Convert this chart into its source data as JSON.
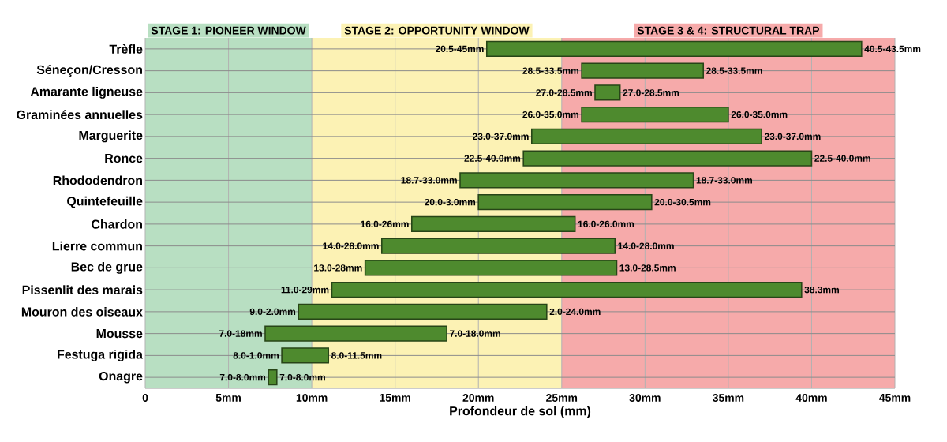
{
  "chart_data": {
    "type": "bar",
    "orientation": "horizontal",
    "xlabel": "Profondeur de sol (mm)",
    "categories": [
      "Trèfle",
      "Séneçon/Cresson",
      "Amarante ligneuse",
      "Graminées annuelles",
      "Marguerite",
      "Ronce",
      "Rhododendron",
      "Quintefeuille",
      "Chardon",
      "Lierre commun",
      "Bec de grue",
      "Pissenlit des marais",
      "Mouron des oiseaux",
      "Mousse",
      "Festuga rigida",
      "Onagre"
    ],
    "base": [
      20.5,
      26.2,
      27.0,
      26.2,
      23.2,
      22.7,
      18.9,
      20.0,
      16.0,
      14.2,
      13.2,
      11.2,
      9.2,
      7.2,
      8.2,
      7.4
    ],
    "values": [
      22.5,
      7.3,
      1.5,
      8.8,
      13.8,
      17.3,
      14.0,
      10.4,
      9.8,
      14.0,
      15.1,
      28.2,
      14.9,
      10.9,
      2.8,
      0.5
    ],
    "color": "#4e8a2e",
    "xlim": [
      0,
      45
    ],
    "xticks": [
      0,
      {
        "value": 5,
        "label": "5mm"
      },
      {
        "value": 10,
        "label": "10mm"
      },
      {
        "value": 15,
        "label": "15mm"
      },
      {
        "value": 20,
        "label": "20mm"
      },
      {
        "value": 25,
        "label": "25mm"
      },
      {
        "value": 30,
        "label": "30mm"
      },
      {
        "value": 35,
        "label": "35mm"
      },
      {
        "value": 40,
        "label": "40mm"
      },
      {
        "value": 45,
        "label": "45mm"
      }
    ],
    "grid": true,
    "bands": [
      {
        "axis": "x",
        "from": 0,
        "to": 10,
        "label": "STAGE 1: PIONEER WINDOW",
        "color": "#b8dfc2"
      },
      {
        "axis": "x",
        "from": 10,
        "to": 25,
        "label": "STAGE 2: OPPORTUNITY WINDOW",
        "color": "#fcf2b4"
      },
      {
        "axis": "x",
        "from": 25,
        "to": 45,
        "label": "STAGE 3 & 4: STRUCTURAL TRAP",
        "color": "#f6aaaa"
      }
    ],
    "annotations": [
      {
        "text": "20.5-45mm",
        "x": 20.5,
        "y": "Trèfle"
      },
      {
        "text": "40.5-43.5mm",
        "x": 43.0,
        "y": "Trèfle"
      },
      {
        "text": "28.5-33.5mm",
        "x": 26.2,
        "y": "Séneçon/Cresson"
      },
      {
        "text": "28.5-33.5mm",
        "x": 33.5,
        "y": "Séneçon/Cresson"
      },
      {
        "text": "27.0-28.5mm",
        "x": 27.0,
        "y": "Amarante ligneuse"
      },
      {
        "text": "27.0-28.5mm",
        "x": 28.5,
        "y": "Amarante ligneuse"
      },
      {
        "text": "26.0-35.0mm",
        "x": 26.2,
        "y": "Graminées annuelles"
      },
      {
        "text": "26.0-35.0mm",
        "x": 35.0,
        "y": "Graminées annuelles"
      },
      {
        "text": "23.0-37.0mm",
        "x": 23.2,
        "y": "Marguerite"
      },
      {
        "text": "23.0-37.0mm",
        "x": 37.0,
        "y": "Marguerite"
      },
      {
        "text": "22.5-40.0mm",
        "x": 22.7,
        "y": "Ronce"
      },
      {
        "text": "22.5-40.0mm",
        "x": 40.0,
        "y": "Ronce"
      },
      {
        "text": "18.7-33.0mm",
        "x": 18.9,
        "y": "Rhododendron"
      },
      {
        "text": "18.7-33.0mm",
        "x": 32.9,
        "y": "Rhododendron"
      },
      {
        "text": "20.0-3.0mm",
        "x": 20.0,
        "y": "Quintefeuille"
      },
      {
        "text": "20.0-30.5mm",
        "x": 30.4,
        "y": "Quintefeuille"
      },
      {
        "text": "16.0-26mm",
        "x": 16.0,
        "y": "Chardon"
      },
      {
        "text": "16.0-26.0mm",
        "x": 25.8,
        "y": "Chardon"
      },
      {
        "text": "14.0-28.0mm",
        "x": 14.2,
        "y": "Lierre commun"
      },
      {
        "text": "14.0-28.0mm",
        "x": 28.2,
        "y": "Lierre commun"
      },
      {
        "text": "13.0-28mm",
        "x": 13.2,
        "y": "Bec de grue"
      },
      {
        "text": "13.0-28.5mm",
        "x": 28.3,
        "y": "Bec de grue"
      },
      {
        "text": "11.0-29mm",
        "x": 11.2,
        "y": "Pissenlit des marais"
      },
      {
        "text": "38.3mm",
        "x": 39.4,
        "y": "Pissenlit des marais"
      },
      {
        "text": "9.0-2.0mm",
        "x": 9.2,
        "y": "Mouron des oiseaux"
      },
      {
        "text": "2.0-24.0mm",
        "x": 24.1,
        "y": "Mouron des oiseaux"
      },
      {
        "text": "7.0-18mm",
        "x": 7.2,
        "y": "Mousse"
      },
      {
        "text": "7.0-18.0mm",
        "x": 18.1,
        "y": "Mousse"
      },
      {
        "text": "8.0-1.0mm",
        "x": 8.2,
        "y": "Festuga rigida"
      },
      {
        "text": "8.0-11.5mm",
        "x": 11.0,
        "y": "Festuga rigida"
      },
      {
        "text": "7.0-8.0mm",
        "x": 7.4,
        "y": "Onagre"
      },
      {
        "text": "7.0-8.0mm",
        "x": 7.9,
        "y": "Onagre"
      }
    ]
  }
}
